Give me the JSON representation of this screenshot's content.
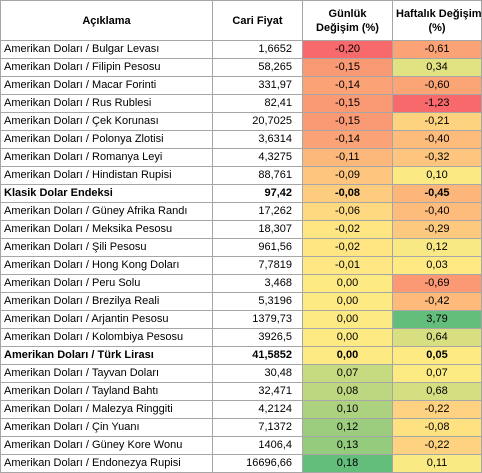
{
  "headers": {
    "description": "Açıklama",
    "price": "Cari Fiyat",
    "daily_line1": "Günlük",
    "daily_line2": "Değişim (%)",
    "weekly_line1": "Haftalık Değişim",
    "weekly_line2": "(%)"
  },
  "rows": [
    {
      "name": "Amerikan Doları / Bulgar Levası",
      "price": "1,6652",
      "daily": "-0,20",
      "weekly": "-0,61",
      "daily_color": "#f8696b",
      "weekly_color": "#fba376",
      "bold": false
    },
    {
      "name": "Amerikan Doları / Filipin Pesosu",
      "price": "58,265",
      "daily": "-0,15",
      "weekly": "0,34",
      "daily_color": "#fa9a74",
      "weekly_color": "#e1e282",
      "bold": false
    },
    {
      "name": "Amerikan Doları / Macar Forinti",
      "price": "331,97",
      "daily": "-0,14",
      "weekly": "-0,60",
      "daily_color": "#fba376",
      "weekly_color": "#fba476",
      "bold": false
    },
    {
      "name": "Amerikan Doları / Rus Rublesi",
      "price": "82,41",
      "daily": "-0,15",
      "weekly": "-1,23",
      "daily_color": "#fa9a74",
      "weekly_color": "#f8696b",
      "bold": false
    },
    {
      "name": "Amerikan Doları / Çek Korunası",
      "price": "20,7025",
      "daily": "-0,15",
      "weekly": "-0,21",
      "daily_color": "#fa9a74",
      "weekly_color": "#fed380",
      "bold": false
    },
    {
      "name": "Amerikan Doları / Polonya Zlotisi",
      "price": "3,6314",
      "daily": "-0,14",
      "weekly": "-0,40",
      "daily_color": "#fba376",
      "weekly_color": "#fdbc7b",
      "bold": false
    },
    {
      "name": "Amerikan Doları / Romanya Leyi",
      "price": "4,3275",
      "daily": "-0,11",
      "weekly": "-0,32",
      "daily_color": "#fcb77a",
      "weekly_color": "#fdc57d",
      "bold": false
    },
    {
      "name": "Amerikan Doları / Hindistan Rupisi",
      "price": "88,761",
      "daily": "-0,09",
      "weekly": "0,10",
      "daily_color": "#fdc57d",
      "weekly_color": "#fbea84",
      "bold": false
    },
    {
      "name": "Klasik Dolar Endeksi",
      "price": "97,42",
      "daily": "-0,08",
      "weekly": "-0,45",
      "daily_color": "#fdcc7e",
      "weekly_color": "#fcb67a",
      "bold": true
    },
    {
      "name": "Amerikan Doları / Güney Afrika Randı",
      "price": "17,262",
      "daily": "-0,06",
      "weekly": "-0,40",
      "daily_color": "#fed980",
      "weekly_color": "#fdbc7b",
      "bold": false
    },
    {
      "name": "Amerikan Doları / Meksika Pesosu",
      "price": "18,307",
      "daily": "-0,02",
      "weekly": "-0,29",
      "daily_color": "#ffe683",
      "weekly_color": "#fdc97e",
      "bold": false
    },
    {
      "name": "Amerikan Doları / Şili Pesosu",
      "price": "961,56",
      "daily": "-0,02",
      "weekly": "0,12",
      "daily_color": "#ffe683",
      "weekly_color": "#f9e984",
      "bold": false
    },
    {
      "name": "Amerikan Doları / Hong Kong Doları",
      "price": "7,7819",
      "daily": "-0,01",
      "weekly": "0,03",
      "daily_color": "#ffe883",
      "weekly_color": "#fee983",
      "bold": false
    },
    {
      "name": "Amerikan Doları / Peru Solu",
      "price": "3,468",
      "daily": "0,00",
      "weekly": "-0,69",
      "daily_color": "#feea83",
      "weekly_color": "#fb9974",
      "bold": false
    },
    {
      "name": "Amerikan Doları / Brezilya Reali",
      "price": "5,3196",
      "daily": "0,00",
      "weekly": "-0,42",
      "daily_color": "#feea83",
      "weekly_color": "#fdba7b",
      "bold": false
    },
    {
      "name": "Amerikan Doları / Arjantin Pesosu",
      "price": "1379,73",
      "daily": "0,00",
      "weekly": "3,79",
      "daily_color": "#feea83",
      "weekly_color": "#63be7b",
      "bold": false
    },
    {
      "name": "Amerikan Doları / Kolombiya Pesosu",
      "price": "3926,5",
      "daily": "0,00",
      "weekly": "0,64",
      "daily_color": "#feea83",
      "weekly_color": "#d7df81",
      "bold": false
    },
    {
      "name": "Amerikan Doları / Türk Lirası",
      "price": "41,5852",
      "daily": "0,00",
      "weekly": "0,05",
      "daily_color": "#feea83",
      "weekly_color": "#fdea83",
      "bold": true
    },
    {
      "name": "Amerikan Doları /  Tayvan Doları",
      "price": "30,48",
      "daily": "0,07",
      "weekly": "0,07",
      "daily_color": "#c6da80",
      "weekly_color": "#fcea83",
      "bold": false
    },
    {
      "name": "Amerikan Doları / Tayland Bahtı",
      "price": "32,471",
      "daily": "0,08",
      "weekly": "0,68",
      "daily_color": "#bdd780",
      "weekly_color": "#d5de81",
      "bold": false
    },
    {
      "name": "Amerikan Doları / Malezya Ringgiti",
      "price": "4,2124",
      "daily": "0,10",
      "weekly": "-0,22",
      "daily_color": "#add27f",
      "weekly_color": "#fed280",
      "bold": false
    },
    {
      "name": "Amerikan Doları / Çin Yuanı",
      "price": "7,1372",
      "daily": "0,12",
      "weekly": "-0,08",
      "daily_color": "#9ccd7e",
      "weekly_color": "#fee282",
      "bold": false
    },
    {
      "name": "Amerikan Doları / Güney Kore Wonu",
      "price": "1406,4",
      "daily": "0,13",
      "weekly": "-0,22",
      "daily_color": "#94cb7d",
      "weekly_color": "#fed280",
      "bold": false
    },
    {
      "name": "Amerikan Doları / Endonezya Rupisi",
      "price": "16696,66",
      "daily": "0,18",
      "weekly": "0,11",
      "daily_color": "#63be7b",
      "weekly_color": "#faea84",
      "bold": false
    }
  ]
}
